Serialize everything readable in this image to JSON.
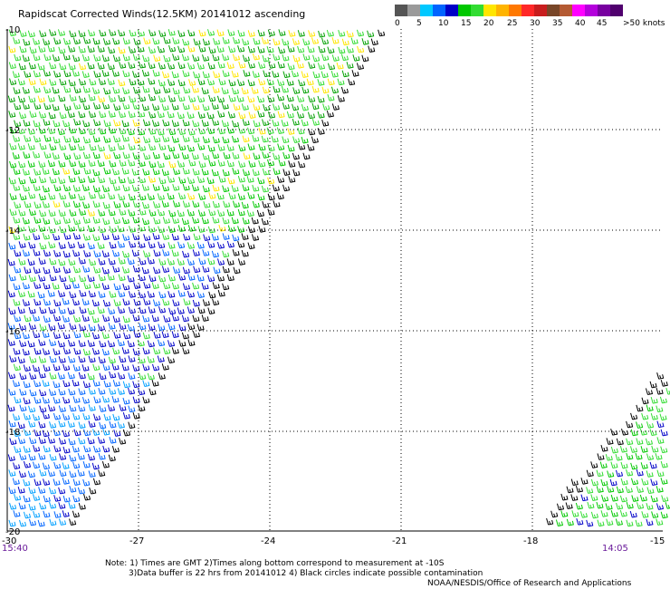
{
  "title": "Rapidscat Corrected Winds(12.5KM) 20141012 ascending",
  "legend": {
    "colors": [
      "#555555",
      "#9a9a9a",
      "#00c8ff",
      "#0064ff",
      "#0000c8",
      "#00c800",
      "#32dc32",
      "#ffe600",
      "#ffb400",
      "#ff7800",
      "#ff2828",
      "#c81e1e",
      "#784628",
      "#b45a32",
      "#ff00ff",
      "#b400dc",
      "#7800a0",
      "#50006e"
    ],
    "labels": [
      "0",
      "5",
      "10",
      "15",
      "20",
      "25",
      "30",
      "35",
      "40",
      "45",
      ">50 knots"
    ]
  },
  "axes": {
    "lon_ticks": [
      "-30",
      "-27",
      "-24",
      "-21",
      "-18",
      "-15"
    ],
    "lat_ticks": [
      "-10",
      "-12",
      "-14",
      "-16",
      "-18",
      "-20"
    ]
  },
  "swaths": [
    {
      "start_time": "15:40",
      "end_time": "14:05"
    }
  ],
  "notes": [
    "Note: 1) Times are GMT 2)Times along bottom correspond to measurement at -10S",
    "3)Data buffer is 22 hrs from 20141012 4) Black circles indicate possible contamination",
    "NOAA/NESDIS/Office of Research and Applications"
  ]
}
